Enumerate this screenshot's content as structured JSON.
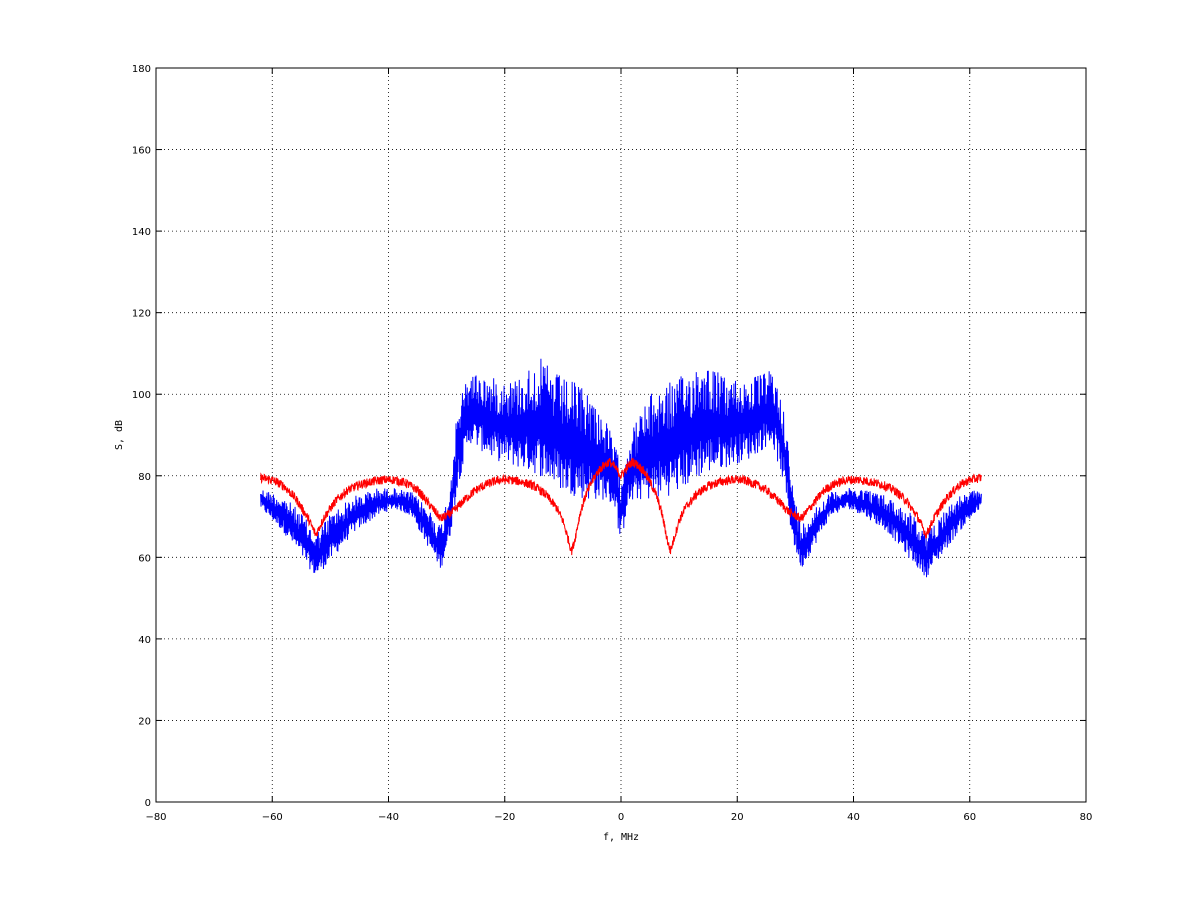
{
  "chart_data": {
    "type": "line",
    "title": "",
    "xlabel": "f, MHz",
    "ylabel": "S, dB",
    "xlim": [
      -80,
      80
    ],
    "ylim": [
      0,
      180
    ],
    "xticks": [
      -80,
      -60,
      -40,
      -20,
      0,
      20,
      40,
      60,
      80
    ],
    "yticks": [
      0,
      20,
      40,
      60,
      80,
      100,
      120,
      140,
      160,
      180
    ],
    "xtick_labels": [
      "−80",
      "−60",
      "−40",
      "−20",
      "0",
      "20",
      "40",
      "60",
      "80"
    ],
    "ytick_labels": [
      "0",
      "20",
      "40",
      "60",
      "80",
      "100",
      "120",
      "140",
      "160",
      "180"
    ],
    "grid": true,
    "legend": "none",
    "x_range_of_data": [
      -62.5,
      62.5
    ],
    "series": [
      {
        "color": "#0000ff",
        "shape": "noisy spectrum: passband around 100 dB for |f| between 1 and 29 MHz with a notch near 0 MHz, sidelobes below 80 dB beyond 30 MHz",
        "x": [
          -62,
          -58,
          -55,
          -52.5,
          -50,
          -46,
          -42,
          -39,
          -36,
          -33,
          -31,
          -29.5,
          -28,
          -26,
          -22,
          -18,
          -14,
          -10,
          -6,
          -3,
          -1,
          0,
          1,
          3,
          6,
          10,
          14,
          18,
          22,
          26,
          28,
          29.5,
          31,
          33,
          36,
          39,
          42,
          46,
          50,
          52.5,
          55,
          58,
          62
        ],
        "min": [
          72,
          66,
          60,
          55,
          59,
          66,
          70,
          72,
          70,
          62,
          57,
          64,
          78,
          88,
          84,
          82,
          80,
          76,
          74,
          74,
          72,
          62,
          72,
          74,
          74,
          76,
          80,
          82,
          84,
          88,
          78,
          64,
          57,
          62,
          70,
          72,
          70,
          66,
          59,
          55,
          60,
          66,
          72
        ],
        "max": [
          77,
          75,
          71,
          66,
          71,
          75,
          77,
          77,
          76,
          72,
          68,
          78,
          98,
          106,
          104,
          104,
          109,
          104,
          102,
          95,
          88,
          82,
          88,
          95,
          102,
          104,
          109,
          104,
          104,
          106,
          98,
          78,
          68,
          72,
          76,
          77,
          77,
          75,
          71,
          66,
          71,
          75,
          77
        ]
      },
      {
        "color": "#ff0000",
        "shape": "sinc-like envelope with nulls near ±8.5, ±31 and ±52.5 MHz",
        "x": [
          -62,
          -60,
          -58,
          -56,
          -54,
          -52.5,
          -51,
          -49,
          -47,
          -45,
          -43,
          -41,
          -39,
          -37,
          -35,
          -33,
          -31,
          -29,
          -27,
          -25,
          -23,
          -21,
          -19,
          -17,
          -15,
          -13,
          -11,
          -10,
          -9,
          -8.5,
          -8,
          -7,
          -6,
          -5,
          -4,
          -3,
          -2,
          -1,
          0,
          1,
          2,
          3,
          4,
          5,
          6,
          7,
          8,
          8.5,
          9,
          10,
          11,
          13,
          15,
          17,
          19,
          21,
          23,
          25,
          27,
          29,
          31,
          33,
          35,
          37,
          39,
          41,
          43,
          45,
          47,
          49,
          51,
          52.5,
          54,
          56,
          58,
          60,
          62
        ],
        "y": [
          79.5,
          79,
          77.5,
          74.5,
          70,
          65.5,
          70,
          74,
          76.5,
          77.8,
          78.5,
          79,
          79,
          78.2,
          76.5,
          73,
          69.5,
          71,
          74,
          76.5,
          78,
          79,
          79,
          78.5,
          77.5,
          75.5,
          72,
          69,
          64,
          61.5,
          64,
          71,
          75.5,
          78.5,
          81,
          82.5,
          83.5,
          82,
          80,
          82,
          83.5,
          82.5,
          81,
          78.5,
          75.5,
          71,
          64,
          61.5,
          64,
          69,
          72,
          75.5,
          77.5,
          78.5,
          79,
          79,
          78,
          76.5,
          74,
          71,
          69.5,
          73,
          76.5,
          78.2,
          79,
          79,
          78.5,
          77.8,
          76.5,
          74,
          70,
          65.5,
          70,
          74.5,
          77.5,
          79,
          79.5
        ]
      }
    ]
  }
}
